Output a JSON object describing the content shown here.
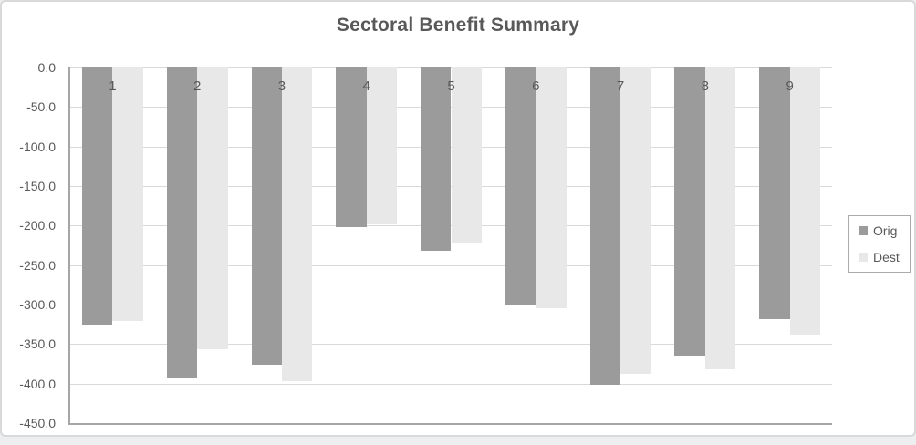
{
  "chart": {
    "title": "Sectoral Benefit Summary",
    "colors": {
      "orig_series": "#9b9b9b",
      "dest_series": "#e8e8e8",
      "gridline": "#d9d9d9",
      "axis_line": "#a6a6a6",
      "text": "#595959",
      "chart_border": "#d9d9d9",
      "background": "#ffffff"
    },
    "legend": {
      "position": "right",
      "entries": [
        "Orig",
        "Dest"
      ]
    }
  },
  "chart_data": {
    "type": "bar",
    "orientation": "vertical",
    "title": "Sectoral Benefit Summary",
    "categories": [
      "1",
      "2",
      "3",
      "4",
      "5",
      "6",
      "7",
      "8",
      "9"
    ],
    "series": [
      {
        "name": "Orig",
        "color": "#9b9b9b",
        "values": [
          -325,
          -392,
          -376,
          -202,
          -232,
          -300,
          -401,
          -365,
          -318
        ]
      },
      {
        "name": "Dest",
        "color": "#e8e8e8",
        "values": [
          -321,
          -356,
          -397,
          -199,
          -222,
          -305,
          -388,
          -382,
          -338
        ]
      }
    ],
    "ylim": [
      -450,
      0
    ],
    "ytick_interval": 50,
    "ytick_labels": [
      "0.0",
      "-50.0",
      "-100.0",
      "-150.0",
      "-200.0",
      "-250.0",
      "-300.0",
      "-350.0",
      "-400.0",
      "-450.0"
    ],
    "xlabel": "",
    "ylabel": "",
    "grid": true,
    "legend_position": "right",
    "category_labels_position": "inside-top"
  }
}
